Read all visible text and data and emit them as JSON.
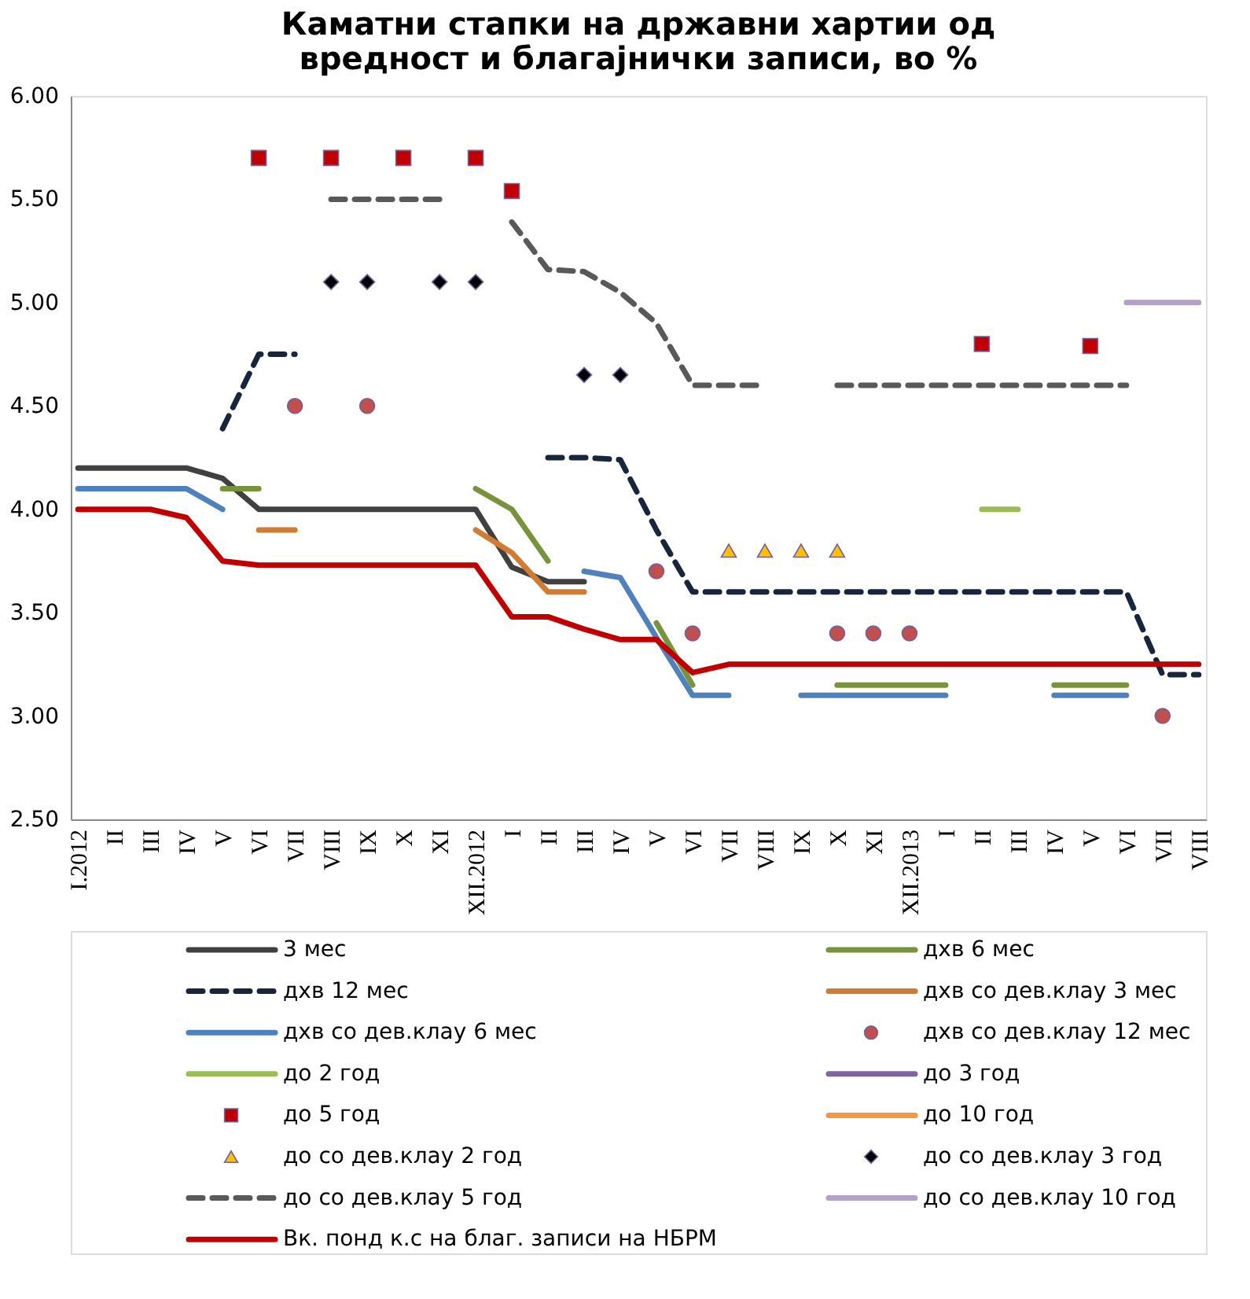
{
  "chart_data": {
    "type": "line",
    "title": "Каматни стапки на државни хартии од вредност и благајнички записи, во %",
    "categories": [
      "I.2012",
      "II",
      "III",
      "IV",
      "V",
      "VI",
      "VII",
      "VIII",
      "IX",
      "X",
      "XI",
      "XII.2012",
      "I",
      "II",
      "III",
      "IV",
      "V",
      "VI",
      "VII",
      "VIII",
      "IX",
      "X",
      "XI",
      "XII.2013",
      "I",
      "II",
      "III",
      "IV",
      "V",
      "VI",
      "VII",
      "VIII"
    ],
    "ylim": [
      2.5,
      6
    ],
    "yticks": [
      {
        "value": 2.5,
        "label": "2.50"
      },
      {
        "value": 3,
        "label": "3.00"
      },
      {
        "value": 3.5,
        "label": "3.50"
      },
      {
        "value": 4,
        "label": "4.00"
      },
      {
        "value": 4.5,
        "label": "4.50"
      },
      {
        "value": 5,
        "label": "5.00"
      },
      {
        "value": 5.5,
        "label": "5.50"
      },
      {
        "value": 6,
        "label": "6.00"
      }
    ],
    "legend": "bottom",
    "series": [
      {
        "name": "3 мес",
        "line_style": "solid",
        "color": "#404040",
        "values": [
          4.2,
          4.2,
          4.2,
          4.2,
          4.15,
          4,
          4,
          4,
          4,
          4,
          4,
          4,
          3.72,
          3.65,
          3.65,
          null,
          null,
          null,
          null,
          null,
          null,
          null,
          null,
          null,
          null,
          null,
          null,
          null,
          null,
          null,
          null,
          null
        ]
      },
      {
        "name": "дхв 6 мес",
        "line_style": "solid",
        "color": "#77933c",
        "values": [
          null,
          null,
          null,
          null,
          4.1,
          4.1,
          null,
          null,
          null,
          null,
          null,
          4.1,
          4.0,
          3.75,
          null,
          null,
          3.45,
          3.15,
          null,
          null,
          null,
          3.15,
          3.15,
          3.15,
          3.15,
          null,
          null,
          3.15,
          3.15,
          3.15,
          null,
          null
        ]
      },
      {
        "name": "дхв 12 мес",
        "line_style": "dashed",
        "color": "#17263c",
        "values": [
          null,
          null,
          null,
          null,
          4.39,
          4.75,
          4.75,
          null,
          null,
          null,
          null,
          null,
          null,
          4.25,
          4.25,
          4.24,
          3.9,
          3.6,
          3.6,
          3.6,
          3.6,
          3.6,
          3.6,
          3.6,
          3.6,
          3.6,
          3.6,
          3.6,
          3.6,
          3.6,
          3.2,
          3.2
        ]
      },
      {
        "name": "дхв со дев.клау 3 мес",
        "line_style": "solid",
        "color": "#d07c32",
        "values": [
          null,
          null,
          null,
          null,
          null,
          3.9,
          3.9,
          null,
          null,
          null,
          null,
          3.9,
          3.79,
          3.6,
          3.6,
          null,
          null,
          null,
          null,
          null,
          null,
          null,
          null,
          null,
          null,
          null,
          null,
          null,
          null,
          null,
          null,
          null
        ]
      },
      {
        "name": "дхв со дев.клау 6 мес",
        "line_style": "solid",
        "color": "#4f81bd",
        "values": [
          4.1,
          4.1,
          4.1,
          4.1,
          4.0,
          null,
          null,
          null,
          null,
          null,
          null,
          null,
          null,
          null,
          3.7,
          3.67,
          3.38,
          3.1,
          3.1,
          null,
          3.1,
          3.1,
          3.1,
          3.1,
          3.1,
          null,
          null,
          3.1,
          3.1,
          3.1,
          null,
          null
        ]
      },
      {
        "name": "дхв со дев.клау 12 мес",
        "type": "scatter",
        "marker": "circle",
        "color": "#c0504d",
        "values": [
          null,
          null,
          null,
          null,
          null,
          null,
          4.5,
          null,
          4.5,
          null,
          null,
          null,
          null,
          null,
          null,
          null,
          3.7,
          3.4,
          null,
          null,
          null,
          3.4,
          3.4,
          3.4,
          null,
          null,
          null,
          null,
          null,
          null,
          3.0,
          null
        ]
      },
      {
        "name": "до 2 год",
        "line_style": "solid",
        "color": "#9bbb59",
        "values": [
          null,
          null,
          null,
          null,
          null,
          null,
          null,
          null,
          null,
          null,
          null,
          null,
          null,
          null,
          null,
          null,
          null,
          null,
          null,
          null,
          null,
          null,
          null,
          null,
          null,
          4.0,
          4.0,
          null,
          null,
          null,
          null,
          null
        ]
      },
      {
        "name": "до 3 год",
        "line_style": "solid",
        "color": "#8064a2",
        "values": [
          null,
          null,
          null,
          null,
          null,
          null,
          null,
          null,
          null,
          null,
          null,
          null,
          null,
          null,
          null,
          null,
          null,
          null,
          null,
          null,
          null,
          null,
          null,
          null,
          null,
          null,
          null,
          null,
          null,
          null,
          null,
          null
        ]
      },
      {
        "name": "до 5 год",
        "type": "scatter",
        "marker": "square",
        "color": "#c00000",
        "values": [
          null,
          null,
          null,
          null,
          null,
          5.7,
          null,
          5.7,
          null,
          5.7,
          null,
          5.7,
          5.54,
          null,
          null,
          null,
          null,
          null,
          null,
          null,
          null,
          null,
          null,
          null,
          null,
          4.8,
          null,
          null,
          4.79,
          null,
          null,
          null
        ]
      },
      {
        "name": "до 10 год",
        "line_style": "solid",
        "color": "#f79646",
        "values": [
          null,
          null,
          null,
          null,
          null,
          null,
          null,
          null,
          null,
          null,
          null,
          null,
          null,
          null,
          null,
          null,
          null,
          null,
          null,
          null,
          null,
          null,
          null,
          null,
          null,
          null,
          null,
          null,
          null,
          null,
          null,
          null
        ]
      },
      {
        "name": "до со дев.клау 2 год",
        "type": "scatter",
        "marker": "triangle",
        "color": "#ffc000",
        "values": [
          null,
          null,
          null,
          null,
          null,
          null,
          null,
          null,
          null,
          null,
          null,
          null,
          null,
          null,
          null,
          null,
          null,
          null,
          3.8,
          3.8,
          3.8,
          3.8,
          null,
          null,
          null,
          null,
          null,
          null,
          null,
          null,
          null,
          null
        ]
      },
      {
        "name": "до со дев.клау 3 год",
        "type": "scatter",
        "marker": "diamond",
        "color": "#000000",
        "values": [
          null,
          null,
          null,
          null,
          null,
          null,
          null,
          5.1,
          5.1,
          null,
          5.1,
          5.1,
          null,
          null,
          4.65,
          4.65,
          null,
          null,
          null,
          null,
          null,
          null,
          null,
          null,
          null,
          null,
          null,
          null,
          null,
          null,
          null,
          null
        ]
      },
      {
        "name": "до со дев.клау 5 год",
        "line_style": "dashed",
        "color": "#595959",
        "values": [
          null,
          null,
          null,
          null,
          null,
          null,
          null,
          5.5,
          5.5,
          5.5,
          5.5,
          null,
          5.39,
          5.16,
          5.15,
          5.05,
          4.9,
          4.6,
          4.6,
          4.6,
          null,
          4.6,
          4.6,
          4.6,
          4.6,
          4.6,
          4.6,
          4.6,
          4.6,
          4.6,
          null,
          null
        ]
      },
      {
        "name": "до со дев.клау 10 год",
        "line_style": "solid",
        "color": "#b3a2c7",
        "values": [
          null,
          null,
          null,
          null,
          null,
          null,
          null,
          null,
          null,
          null,
          null,
          null,
          null,
          null,
          null,
          null,
          null,
          null,
          null,
          null,
          null,
          null,
          null,
          null,
          null,
          null,
          null,
          null,
          null,
          5.0,
          5.0,
          5.0
        ]
      },
      {
        "name": "Вк. понд к.с на благ. записи на НБРМ",
        "line_style": "solid",
        "color": "#c00000",
        "values": [
          4,
          4,
          4,
          3.96,
          3.75,
          3.73,
          3.73,
          3.73,
          3.73,
          3.73,
          3.73,
          3.73,
          3.48,
          3.48,
          3.42,
          3.37,
          3.37,
          3.21,
          3.25,
          3.25,
          3.25,
          3.25,
          3.25,
          3.25,
          3.25,
          3.25,
          3.25,
          3.25,
          3.25,
          3.25,
          3.25,
          3.25
        ]
      }
    ]
  }
}
